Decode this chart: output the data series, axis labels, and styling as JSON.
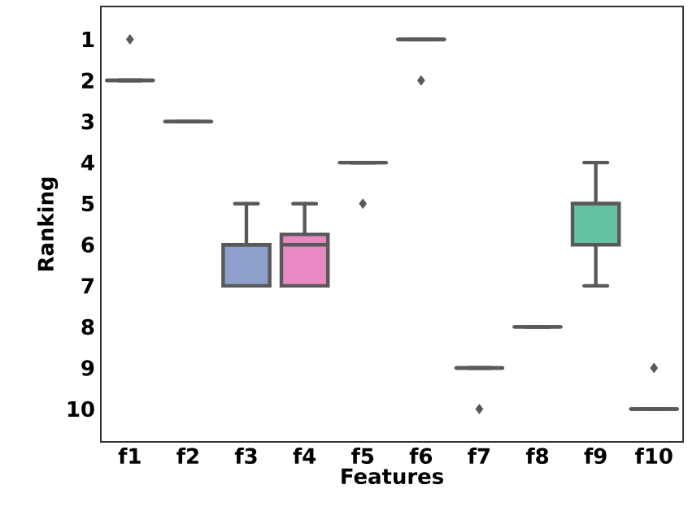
{
  "chart_data": {
    "type": "box",
    "xlabel": "Features",
    "ylabel": "Ranking",
    "categories": [
      "f1",
      "f2",
      "f3",
      "f4",
      "f5",
      "f6",
      "f7",
      "f8",
      "f9",
      "f10"
    ],
    "colors": [
      null,
      null,
      "#8da0cb",
      "#e78ac3",
      null,
      null,
      null,
      null,
      "#66c2a5",
      null
    ],
    "boxes": [
      {
        "low": 2,
        "q1": 2,
        "median": 2,
        "q3": 2,
        "high": 2,
        "outliers": [
          1
        ]
      },
      {
        "low": 3,
        "q1": 3,
        "median": 3,
        "q3": 3,
        "high": 3
      },
      {
        "low": 5,
        "q1": 6,
        "median": 6,
        "q3": 7,
        "high": 7
      },
      {
        "low": 5,
        "q1": 5.75,
        "median": 6,
        "q3": 7,
        "high": 7
      },
      {
        "low": 4,
        "q1": 4,
        "median": 4,
        "q3": 4,
        "high": 4,
        "outliers": [
          5
        ]
      },
      {
        "low": 1,
        "q1": 1,
        "median": 1,
        "q3": 1,
        "high": 1,
        "outliers": [
          2
        ]
      },
      {
        "low": 9,
        "q1": 9,
        "median": 9,
        "q3": 9,
        "high": 9,
        "outliers": [
          10
        ]
      },
      {
        "low": 8,
        "q1": 8,
        "median": 8,
        "q3": 8,
        "high": 8
      },
      {
        "low": 4,
        "q1": 5,
        "median": 5,
        "q3": 6,
        "high": 7
      },
      {
        "low": 10,
        "q1": 10,
        "median": 10,
        "q3": 10,
        "high": 10,
        "outliers": [
          9
        ]
      }
    ],
    "ylim": [
      10.8,
      0.2
    ],
    "yticks": [
      1,
      2,
      3,
      4,
      5,
      6,
      7,
      8,
      9,
      10
    ],
    "grid": false
  }
}
